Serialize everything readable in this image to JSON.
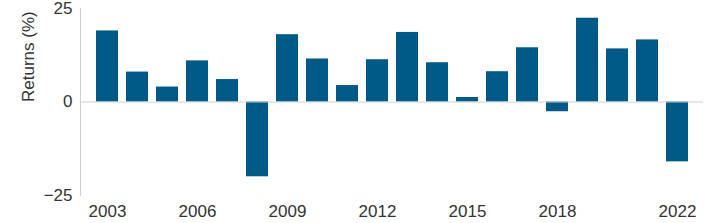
{
  "chart_data": {
    "type": "bar",
    "y_label": "Returns (%)",
    "categories": [
      "2003",
      null,
      null,
      "2006",
      null,
      null,
      "2009",
      null,
      null,
      "2012",
      null,
      null,
      "2015",
      null,
      null,
      "2018",
      null,
      null,
      null,
      "2022"
    ],
    "values": [
      19,
      8,
      4,
      11,
      6,
      -20,
      18,
      11.5,
      4.4,
      11.3,
      18.6,
      10.5,
      1.2,
      8.1,
      14.5,
      -2.6,
      22.4,
      14.2,
      16.6,
      -16
    ],
    "color": "#005a87",
    "ylim": [
      -25,
      25
    ],
    "yticks": [
      -25,
      0,
      25
    ],
    "grid": false
  }
}
